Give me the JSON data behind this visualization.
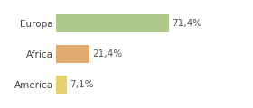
{
  "categories": [
    "Europa",
    "Africa",
    "America"
  ],
  "values": [
    71.4,
    21.4,
    7.1
  ],
  "labels": [
    "71,4%",
    "21,4%",
    "7,1%"
  ],
  "bar_colors": [
    "#aec98a",
    "#e0a96d",
    "#e8d06a"
  ],
  "background_color": "#ffffff",
  "xlim": [
    0,
    105
  ],
  "bar_height": 0.58,
  "label_fontsize": 7.5,
  "tick_fontsize": 7.5
}
